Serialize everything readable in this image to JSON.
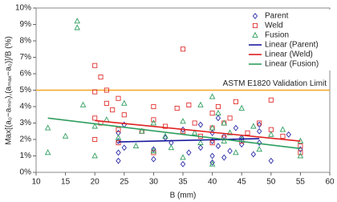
{
  "chart_data": {
    "type": "scatter",
    "xlabel": "B (mm)",
    "ylabel": "Max[(a₀−aₘᵢₙ),(aₘₐₓ−a₀)]/B (%)",
    "xlim": [
      10,
      60
    ],
    "xticks": [
      10,
      15,
      20,
      25,
      30,
      35,
      40,
      45,
      50,
      55,
      60
    ],
    "ylim": [
      0,
      10
    ],
    "yticks": [
      {
        "value": 0,
        "label": "0%"
      },
      {
        "value": 1,
        "label": "1%"
      },
      {
        "value": 2,
        "label": "2%"
      },
      {
        "value": 3,
        "label": "3%"
      },
      {
        "value": 4,
        "label": "4%"
      },
      {
        "value": 5,
        "label": "5%"
      },
      {
        "value": 6,
        "label": "6%"
      },
      {
        "value": 7,
        "label": "7%"
      },
      {
        "value": 8,
        "label": "8%"
      },
      {
        "value": 9,
        "label": "9%"
      },
      {
        "value": 10,
        "label": "10%"
      }
    ],
    "limit": {
      "value": 5,
      "label": "ASTM E1820 Validation Limit",
      "color": "#f5a623"
    },
    "legend": "upper right",
    "series": [
      {
        "name": "Parent",
        "color": "#2a2aa8",
        "marker": "diamond",
        "x": [
          24,
          24,
          24,
          24,
          25,
          25,
          30,
          30,
          32,
          33,
          35,
          35,
          36,
          38,
          38,
          40,
          40,
          40,
          40,
          41,
          41,
          42,
          42,
          43,
          44,
          45,
          45,
          47,
          48,
          48,
          48,
          50,
          53,
          55
        ],
        "values": [
          0.7,
          1.2,
          1.9,
          2.4,
          1.5,
          2.9,
          0.8,
          1.4,
          2.1,
          1.8,
          0.5,
          2.6,
          1.2,
          2.9,
          1.5,
          1.0,
          1.9,
          2.4,
          0.6,
          3.3,
          1.6,
          2.2,
          0.9,
          1.3,
          2.7,
          1.7,
          2.1,
          1.1,
          2.9,
          2.5,
          1.8,
          0.7,
          2.3,
          1.4
        ]
      },
      {
        "name": "Weld",
        "color": "#e03030",
        "marker": "square",
        "x": [
          20,
          20,
          20,
          20,
          21,
          21,
          22,
          22,
          23,
          24,
          24,
          24,
          25,
          28,
          30,
          30,
          30,
          32,
          34,
          35,
          35,
          36,
          37,
          38,
          40,
          40,
          40,
          41,
          42,
          42,
          43,
          44,
          45,
          46,
          48,
          50,
          50,
          52,
          55,
          55
        ],
        "values": [
          2.0,
          3.3,
          4.9,
          6.5,
          5.8,
          3.0,
          4.2,
          5.0,
          3.8,
          4.5,
          2.6,
          1.8,
          3.5,
          2.5,
          4.0,
          3.2,
          1.2,
          2.8,
          3.9,
          7.5,
          2.5,
          4.1,
          3.0,
          2.2,
          3.6,
          1.8,
          2.7,
          4.0,
          3.0,
          2.1,
          3.3,
          4.3,
          1.9,
          2.4,
          3.0,
          4.4,
          2.6,
          2.2,
          1.6,
          1.2
        ]
      },
      {
        "name": "Fusion",
        "color": "#2e9e5e",
        "marker": "triangle",
        "x": [
          12,
          12,
          15,
          17,
          17,
          18,
          20,
          20,
          22,
          24,
          25,
          27,
          28,
          30,
          30,
          32,
          33,
          35,
          35,
          37,
          38,
          38,
          40,
          40,
          40,
          41,
          42,
          42,
          43,
          44,
          45,
          45,
          47,
          48,
          50,
          52,
          55,
          55
        ],
        "values": [
          2.7,
          1.2,
          2.2,
          9.2,
          8.8,
          4.1,
          2.8,
          1.0,
          3.2,
          2.1,
          4.2,
          1.6,
          2.5,
          1.3,
          3.0,
          2.2,
          1.5,
          3.1,
          0.9,
          2.4,
          4.1,
          1.8,
          4.6,
          2.7,
          0.5,
          3.6,
          1.9,
          3.0,
          2.4,
          1.2,
          3.9,
          2.0,
          2.8,
          1.4,
          2.3,
          2.6,
          1.0,
          1.9
        ]
      },
      {
        "name": "Linear (Parent)",
        "color": "#1a1a9e",
        "marker": "line",
        "x": [
          24,
          48
        ],
        "values": [
          1.85,
          2.05
        ]
      },
      {
        "name": "Linear (Weld)",
        "color": "#e02020",
        "marker": "line",
        "x": [
          20,
          55
        ],
        "values": [
          3.15,
          1.9
        ]
      },
      {
        "name": "Linear (Fusion)",
        "color": "#2e9e5e",
        "marker": "line",
        "x": [
          12,
          55
        ],
        "values": [
          3.3,
          1.45
        ]
      }
    ]
  }
}
